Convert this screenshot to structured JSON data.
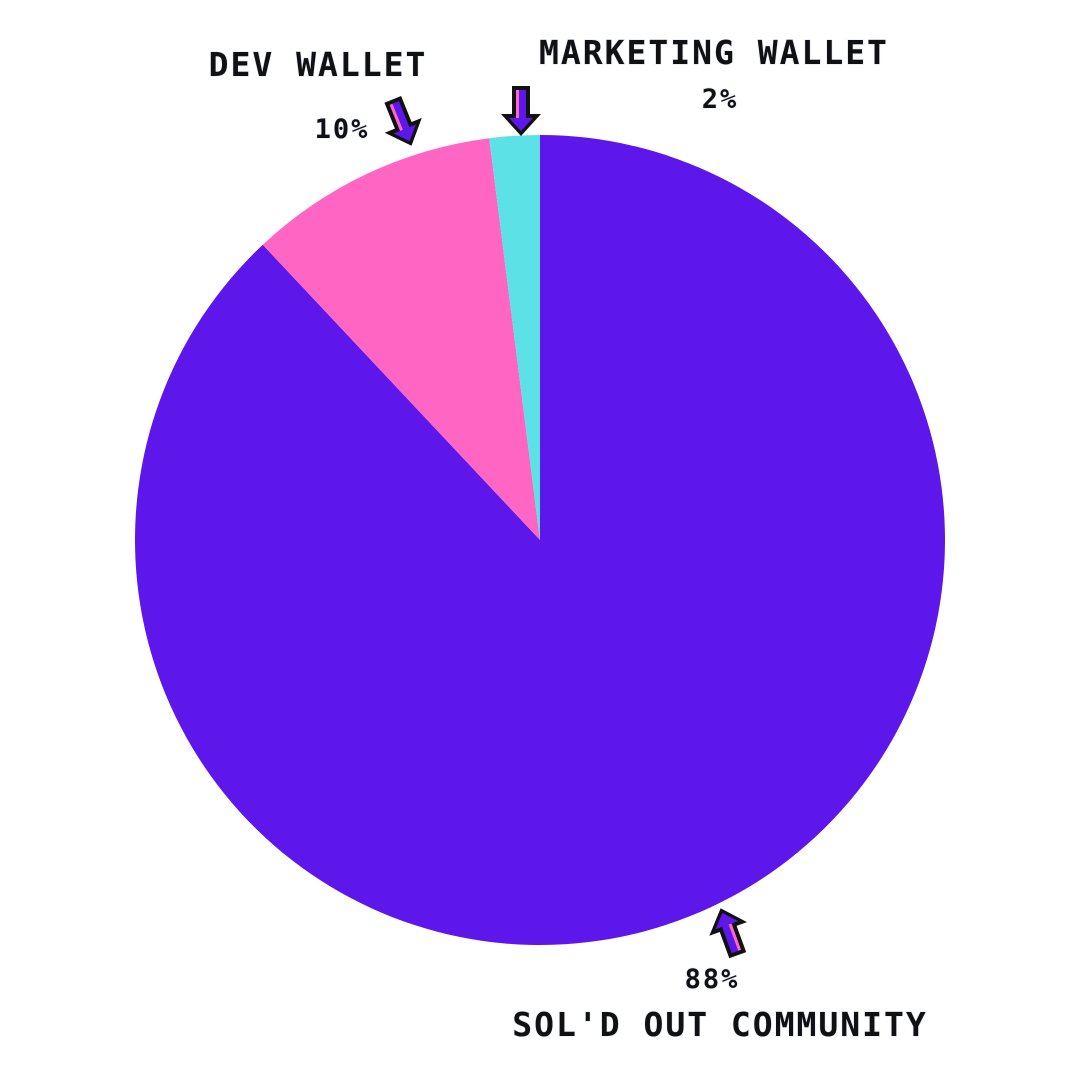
{
  "chart_data": {
    "type": "pie",
    "title": "",
    "slices": [
      {
        "label": "SOL'D OUT COMMUNITY",
        "value": 88,
        "value_label": "88%",
        "color": "#5e17eb"
      },
      {
        "label": "DEV WALLET",
        "value": 10,
        "value_label": "10%",
        "color": "#ff66c4"
      },
      {
        "label": "MARKETING WALLET",
        "value": 2,
        "value_label": "2%",
        "color": "#5ce1e6"
      }
    ],
    "legend": "none",
    "labels_style": "annotated with pixel arrows"
  }
}
